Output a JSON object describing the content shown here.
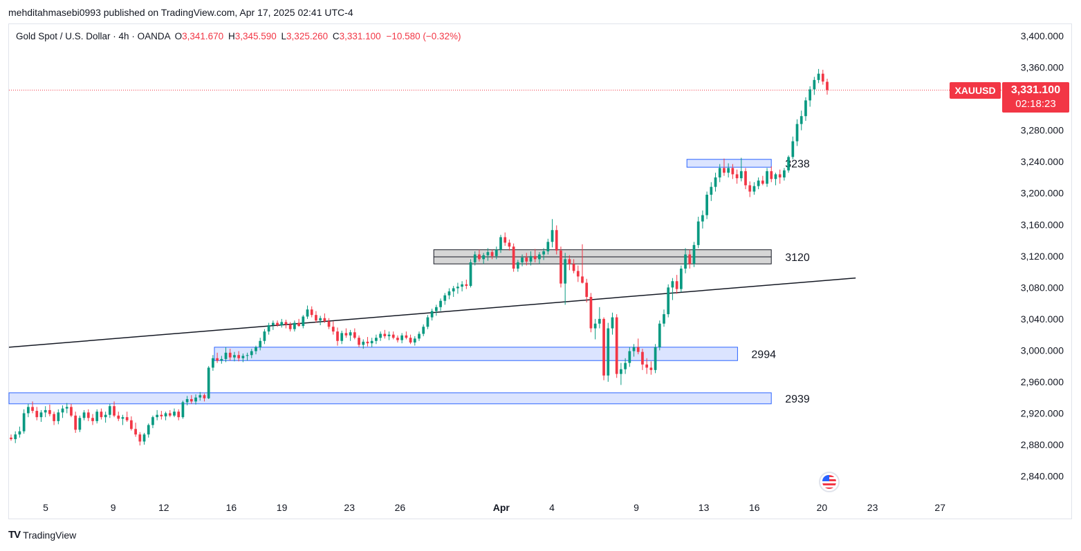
{
  "header": {
    "publisher": "mehditahmasebi0993 published on TradingView.com, Apr 17, 2025 02:41 UTC-4"
  },
  "legend": {
    "symbol": "Gold Spot / U.S. Dollar · 4h · OANDA",
    "o_label": "O",
    "o_value": "3,341.670",
    "h_label": "H",
    "h_value": "3,345.590",
    "l_label": "L",
    "l_value": "3,325.260",
    "c_label": "C",
    "c_value": "3,331.100",
    "change": "−10.580 (−0.32%)"
  },
  "price_tag": {
    "symbol": "XAUUSD",
    "price": "3,331.100",
    "countdown": "02:18:23"
  },
  "footer": {
    "logo_text": "TV",
    "brand": "TradingView"
  },
  "chart_data": {
    "type": "candlestick",
    "timeframe": "4h",
    "ylim": [
      2815,
      3415
    ],
    "y_ticks": [
      2840,
      2880,
      2920,
      2960,
      3000,
      3040,
      3080,
      3120,
      3160,
      3200,
      3240,
      3280,
      3320,
      3360,
      3400
    ],
    "y_tick_labels": [
      "2,840.000",
      "2,880.000",
      "2,920.000",
      "2,960.000",
      "3,000.000",
      "3,040.000",
      "3,080.000",
      "3,120.000",
      "3,160.000",
      "3,200.000",
      "3,240.000",
      "3,280.000",
      "3,320.000",
      "3,360.000",
      "3,400.000"
    ],
    "x_ticks": [
      {
        "label": "5",
        "date": "2025-03-05"
      },
      {
        "label": "9",
        "date": "2025-03-09"
      },
      {
        "label": "12",
        "date": "2025-03-12"
      },
      {
        "label": "16",
        "date": "2025-03-16"
      },
      {
        "label": "19",
        "date": "2025-03-19"
      },
      {
        "label": "23",
        "date": "2025-03-23"
      },
      {
        "label": "26",
        "date": "2025-03-26"
      },
      {
        "label": "Apr",
        "date": "2025-04-01"
      },
      {
        "label": "4",
        "date": "2025-04-04"
      },
      {
        "label": "9",
        "date": "2025-04-09"
      },
      {
        "label": "13",
        "date": "2025-04-13"
      },
      {
        "label": "16",
        "date": "2025-04-16"
      },
      {
        "label": "20",
        "date": "2025-04-20"
      },
      {
        "label": "23",
        "date": "2025-04-23"
      },
      {
        "label": "27",
        "date": "2025-04-27"
      }
    ],
    "last_price": 3331.1,
    "colors": {
      "up": "#089981",
      "down": "#f23645",
      "zone_blue_fill": "#dbe4ff",
      "zone_blue_border": "#2962ff",
      "zone_gray_fill": "#d6d6d6",
      "trendline": "#131722",
      "price_line": "#f23645"
    },
    "zones": [
      {
        "label": "3238",
        "color": "blue",
        "from": "2025-04-12",
        "to": "2025-04-17",
        "low": 3233,
        "high": 3243
      },
      {
        "label": "3120",
        "color": "gray",
        "from": "2025-03-28",
        "to": "2025-04-17",
        "low": 3110,
        "high": 3128
      },
      {
        "label": "2994",
        "color": "blue",
        "from": "2025-03-15",
        "to": "2025-04-15",
        "low": 2987,
        "high": 3004
      },
      {
        "label": "2939",
        "color": "blue",
        "from": "2025-03-01",
        "to": "2025-04-17",
        "low": 2932,
        "high": 2946
      }
    ],
    "trendline": {
      "start": {
        "date": "2025-03-01",
        "price": 3004
      },
      "end": {
        "date": "2025-04-22",
        "price": 3092
      }
    },
    "candles": [
      [
        2889,
        2893,
        2885,
        2887
      ],
      [
        2887,
        2897,
        2882,
        2893
      ],
      [
        2893,
        2903,
        2889,
        2897
      ],
      [
        2897,
        2925,
        2894,
        2920
      ],
      [
        2920,
        2932,
        2915,
        2928
      ],
      [
        2928,
        2935,
        2920,
        2923
      ],
      [
        2923,
        2928,
        2911,
        2915
      ],
      [
        2915,
        2924,
        2909,
        2921
      ],
      [
        2921,
        2929,
        2915,
        2924
      ],
      [
        2924,
        2931,
        2916,
        2919
      ],
      [
        2919,
        2922,
        2905,
        2910
      ],
      [
        2910,
        2925,
        2906,
        2921
      ],
      [
        2921,
        2930,
        2914,
        2926
      ],
      [
        2926,
        2933,
        2920,
        2928
      ],
      [
        2928,
        2932,
        2915,
        2917
      ],
      [
        2917,
        2922,
        2895,
        2899
      ],
      [
        2899,
        2917,
        2896,
        2914
      ],
      [
        2914,
        2924,
        2911,
        2921
      ],
      [
        2921,
        2925,
        2910,
        2914
      ],
      [
        2914,
        2919,
        2905,
        2910
      ],
      [
        2910,
        2925,
        2907,
        2922
      ],
      [
        2922,
        2926,
        2912,
        2915
      ],
      [
        2915,
        2922,
        2908,
        2918
      ],
      [
        2918,
        2932,
        2914,
        2929
      ],
      [
        2929,
        2935,
        2915,
        2917
      ],
      [
        2917,
        2922,
        2910,
        2913
      ],
      [
        2913,
        2918,
        2905,
        2915
      ],
      [
        2915,
        2922,
        2909,
        2911
      ],
      [
        2911,
        2916,
        2898,
        2900
      ],
      [
        2900,
        2908,
        2890,
        2893
      ],
      [
        2893,
        2896,
        2879,
        2884
      ],
      [
        2884,
        2895,
        2880,
        2893
      ],
      [
        2893,
        2907,
        2889,
        2905
      ],
      [
        2905,
        2917,
        2901,
        2915
      ],
      [
        2915,
        2924,
        2911,
        2918
      ],
      [
        2918,
        2923,
        2912,
        2916
      ],
      [
        2916,
        2922,
        2911,
        2920
      ],
      [
        2920,
        2924,
        2915,
        2917
      ],
      [
        2917,
        2926,
        2915,
        2922
      ],
      [
        2922,
        2925,
        2911,
        2915
      ],
      [
        2915,
        2936,
        2913,
        2934
      ],
      [
        2934,
        2942,
        2930,
        2938
      ],
      [
        2938,
        2943,
        2932,
        2935
      ],
      [
        2935,
        2944,
        2931,
        2940
      ],
      [
        2940,
        2947,
        2936,
        2943
      ],
      [
        2943,
        2945,
        2935,
        2939
      ],
      [
        2939,
        2980,
        2938,
        2978
      ],
      [
        2978,
        2994,
        2974,
        2990
      ],
      [
        2990,
        2997,
        2984,
        2987
      ],
      [
        2987,
        2993,
        2983,
        2989
      ],
      [
        2989,
        3004,
        2985,
        2997
      ],
      [
        2997,
        3002,
        2987,
        2991
      ],
      [
        2991,
        2998,
        2986,
        2994
      ],
      [
        2994,
        2999,
        2986,
        2990
      ],
      [
        2990,
        2996,
        2985,
        2993
      ],
      [
        2993,
        2997,
        2987,
        2994
      ],
      [
        2994,
        3002,
        2990,
        2999
      ],
      [
        2999,
        3006,
        2995,
        3004
      ],
      [
        3004,
        3016,
        3000,
        3012
      ],
      [
        3012,
        3027,
        3008,
        3024
      ],
      [
        3024,
        3035,
        3020,
        3032
      ],
      [
        3032,
        3038,
        3026,
        3035
      ],
      [
        3035,
        3038,
        3030,
        3032
      ],
      [
        3032,
        3040,
        3029,
        3036
      ],
      [
        3036,
        3039,
        3028,
        3033
      ],
      [
        3033,
        3036,
        3024,
        3027
      ],
      [
        3027,
        3038,
        3024,
        3035
      ],
      [
        3035,
        3040,
        3030,
        3031
      ],
      [
        3031,
        3045,
        3028,
        3043
      ],
      [
        3043,
        3057,
        3040,
        3052
      ],
      [
        3052,
        3056,
        3042,
        3045
      ],
      [
        3045,
        3050,
        3035,
        3038
      ],
      [
        3038,
        3044,
        3032,
        3041
      ],
      [
        3041,
        3047,
        3035,
        3037
      ],
      [
        3037,
        3041,
        3027,
        3030
      ],
      [
        3030,
        3037,
        3020,
        3024
      ],
      [
        3024,
        3029,
        3006,
        3012
      ],
      [
        3012,
        3025,
        3008,
        3022
      ],
      [
        3022,
        3028,
        3016,
        3019
      ],
      [
        3019,
        3026,
        3012,
        3023
      ],
      [
        3023,
        3028,
        3014,
        3016
      ],
      [
        3016,
        3019,
        3004,
        3007
      ],
      [
        3007,
        3014,
        3002,
        3011
      ],
      [
        3011,
        3017,
        3005,
        3009
      ],
      [
        3009,
        3016,
        3004,
        3012
      ],
      [
        3012,
        3020,
        3008,
        3016
      ],
      [
        3016,
        3024,
        3012,
        3021
      ],
      [
        3021,
        3026,
        3015,
        3018
      ],
      [
        3018,
        3024,
        3013,
        3020
      ],
      [
        3020,
        3024,
        3014,
        3016
      ],
      [
        3016,
        3019,
        3010,
        3013
      ],
      [
        3013,
        3022,
        3009,
        3019
      ],
      [
        3019,
        3024,
        3014,
        3016
      ],
      [
        3016,
        3020,
        3008,
        3010
      ],
      [
        3010,
        3018,
        3006,
        3015
      ],
      [
        3015,
        3024,
        3012,
        3021
      ],
      [
        3021,
        3033,
        3018,
        3030
      ],
      [
        3030,
        3045,
        3027,
        3042
      ],
      [
        3042,
        3053,
        3038,
        3050
      ],
      [
        3050,
        3058,
        3044,
        3055
      ],
      [
        3055,
        3066,
        3050,
        3063
      ],
      [
        3063,
        3073,
        3058,
        3070
      ],
      [
        3070,
        3079,
        3065,
        3075
      ],
      [
        3075,
        3082,
        3068,
        3079
      ],
      [
        3079,
        3086,
        3072,
        3081
      ],
      [
        3081,
        3088,
        3075,
        3084
      ],
      [
        3084,
        3090,
        3078,
        3082
      ],
      [
        3082,
        3116,
        3080,
        3112
      ],
      [
        3112,
        3126,
        3108,
        3122
      ],
      [
        3122,
        3128,
        3113,
        3116
      ],
      [
        3116,
        3124,
        3110,
        3121
      ],
      [
        3121,
        3130,
        3114,
        3125
      ],
      [
        3125,
        3128,
        3116,
        3120
      ],
      [
        3120,
        3132,
        3116,
        3128
      ],
      [
        3128,
        3147,
        3124,
        3144
      ],
      [
        3144,
        3150,
        3133,
        3137
      ],
      [
        3137,
        3141,
        3127,
        3132
      ],
      [
        3132,
        3136,
        3100,
        3104
      ],
      [
        3104,
        3115,
        3100,
        3112
      ],
      [
        3112,
        3122,
        3107,
        3118
      ],
      [
        3118,
        3124,
        3108,
        3113
      ],
      [
        3113,
        3126,
        3108,
        3120
      ],
      [
        3120,
        3129,
        3112,
        3116
      ],
      [
        3116,
        3125,
        3110,
        3122
      ],
      [
        3122,
        3130,
        3115,
        3126
      ],
      [
        3126,
        3142,
        3122,
        3138
      ],
      [
        3138,
        3167,
        3131,
        3153
      ],
      [
        3153,
        3159,
        3122,
        3127
      ],
      [
        3127,
        3132,
        3080,
        3085
      ],
      [
        3085,
        3124,
        3058,
        3116
      ],
      [
        3116,
        3121,
        3102,
        3110
      ],
      [
        3110,
        3116,
        3098,
        3101
      ],
      [
        3101,
        3108,
        3087,
        3094
      ],
      [
        3094,
        3135,
        3085,
        3086
      ],
      [
        3086,
        3091,
        3061,
        3068
      ],
      [
        3068,
        3073,
        3023,
        3028
      ],
      [
        3028,
        3040,
        3014,
        3034
      ],
      [
        3034,
        3055,
        3028,
        3040
      ],
      [
        3040,
        3042,
        2962,
        2968
      ],
      [
        2968,
        3035,
        2960,
        3028
      ],
      [
        3028,
        3048,
        3020,
        3042
      ],
      [
        3042,
        3046,
        2965,
        2970
      ],
      [
        2970,
        2984,
        2956,
        2976
      ],
      [
        2976,
        2990,
        2970,
        2984
      ],
      [
        2984,
        3004,
        2979,
        2999
      ],
      [
        2999,
        3008,
        2992,
        3004
      ],
      [
        3004,
        3015,
        2995,
        2998
      ],
      [
        2998,
        3002,
        2975,
        2982
      ],
      [
        2982,
        2990,
        2970,
        2978
      ],
      [
        2978,
        2986,
        2969,
        2975
      ],
      [
        2975,
        3008,
        2971,
        3004
      ],
      [
        3004,
        3038,
        3000,
        3034
      ],
      [
        3034,
        3052,
        3030,
        3046
      ],
      [
        3046,
        3084,
        3042,
        3080
      ],
      [
        3080,
        3092,
        3064,
        3088
      ],
      [
        3088,
        3096,
        3072,
        3078
      ],
      [
        3078,
        3108,
        3074,
        3104
      ],
      [
        3104,
        3130,
        3098,
        3122
      ],
      [
        3122,
        3128,
        3104,
        3110
      ],
      [
        3110,
        3138,
        3106,
        3134
      ],
      [
        3134,
        3170,
        3130,
        3164
      ],
      [
        3164,
        3178,
        3155,
        3172
      ],
      [
        3172,
        3202,
        3167,
        3198
      ],
      [
        3198,
        3214,
        3190,
        3208
      ],
      [
        3208,
        3226,
        3202,
        3220
      ],
      [
        3220,
        3237,
        3214,
        3232
      ],
      [
        3232,
        3244,
        3222,
        3226
      ],
      [
        3226,
        3238,
        3220,
        3232
      ],
      [
        3232,
        3237,
        3218,
        3224
      ],
      [
        3224,
        3230,
        3212,
        3219
      ],
      [
        3219,
        3245,
        3215,
        3228
      ],
      [
        3228,
        3232,
        3205,
        3210
      ],
      [
        3210,
        3215,
        3195,
        3202
      ],
      [
        3202,
        3214,
        3198,
        3209
      ],
      [
        3209,
        3220,
        3205,
        3216
      ],
      [
        3216,
        3222,
        3210,
        3212
      ],
      [
        3212,
        3232,
        3208,
        3228
      ],
      [
        3228,
        3234,
        3214,
        3218
      ],
      [
        3218,
        3226,
        3210,
        3224
      ],
      [
        3224,
        3230,
        3212,
        3220
      ],
      [
        3220,
        3232,
        3216,
        3229
      ],
      [
        3229,
        3248,
        3226,
        3246
      ],
      [
        3246,
        3272,
        3243,
        3266
      ],
      [
        3266,
        3294,
        3260,
        3288
      ],
      [
        3288,
        3305,
        3280,
        3298
      ],
      [
        3298,
        3322,
        3292,
        3318
      ],
      [
        3318,
        3336,
        3310,
        3332
      ],
      [
        3332,
        3348,
        3325,
        3344
      ],
      [
        3344,
        3358,
        3340,
        3352
      ],
      [
        3352,
        3357,
        3338,
        3342
      ],
      [
        3341.67,
        3345.59,
        3325.26,
        3331.1
      ]
    ]
  }
}
